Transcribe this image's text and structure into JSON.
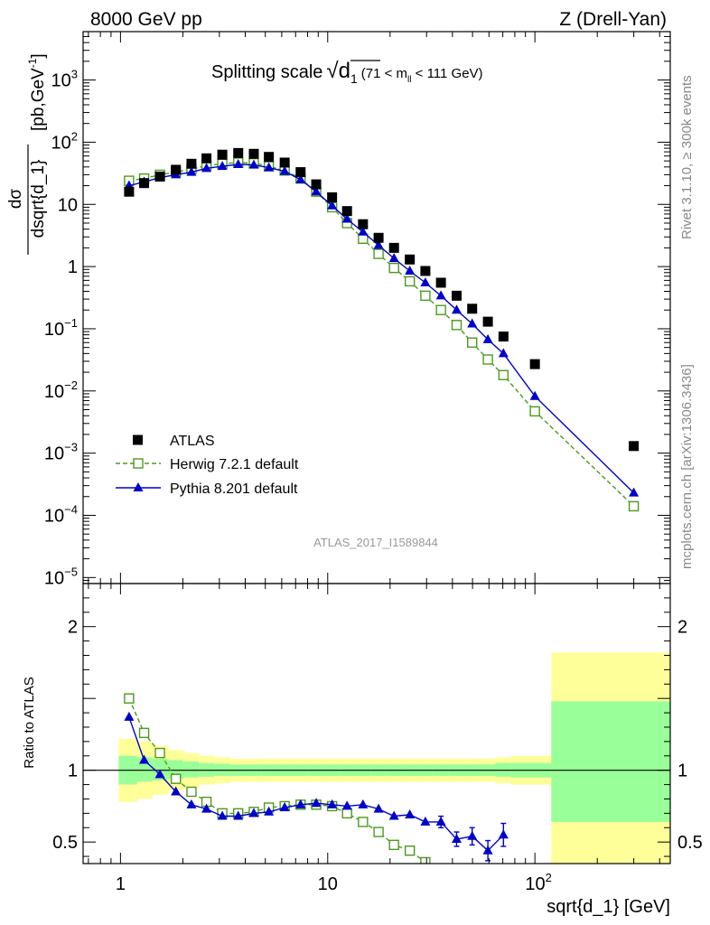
{
  "header": {
    "left": "8000 GeV pp",
    "right": "Z (Drell-Yan)"
  },
  "side_labels": {
    "rivet": "Rivet 3.1.10, ≥ 300k events",
    "mcplots": "mcplots.cern.ch [arXiv:1306.3436]"
  },
  "watermark": "ATLAS_2017_I1589844",
  "colors": {
    "atlas": "#000000",
    "herwig": "#4d9a1e",
    "pythia": "#0000cc",
    "band_inner": "#99ff99",
    "band_outer": "#ffff99"
  },
  "chart_data": [
    {
      "type": "scatter",
      "title": "Splitting scale",
      "title_math": "√d",
      "title_math_sub": "1",
      "title_cut_pre": "(71 < m",
      "title_cut_sub": "ll",
      "title_cut_post": " < 111 GeV)",
      "ylabel_num": "dσ",
      "ylabel_den": "dsqrt{d_1}",
      "ylabel_units": "[pb,GeV",
      "ylabel_units_sup": "-1",
      "ylabel_units_close": "]",
      "xscale": "log",
      "yscale": "log",
      "xlim": [
        0.66,
        450
      ],
      "ylim": [
        8e-06,
        6000
      ],
      "legend_position": "bottom-left",
      "y_ticks": [
        {
          "v": 1e-05,
          "base": "10",
          "exp": "−5"
        },
        {
          "v": 0.0001,
          "base": "10",
          "exp": "−4"
        },
        {
          "v": 0.001,
          "base": "10",
          "exp": "−3"
        },
        {
          "v": 0.01,
          "base": "10",
          "exp": "−2"
        },
        {
          "v": 0.1,
          "base": "10",
          "exp": "−1"
        },
        {
          "v": 1,
          "base": "1",
          "exp": ""
        },
        {
          "v": 10,
          "base": "10",
          "exp": ""
        },
        {
          "v": 100,
          "base": "10",
          "exp": "2"
        },
        {
          "v": 1000,
          "base": "10",
          "exp": "3"
        }
      ],
      "series": [
        {
          "name": "ATLAS",
          "style": "data",
          "x": [
            1.1,
            1.3,
            1.55,
            1.85,
            2.2,
            2.6,
            3.1,
            3.7,
            4.4,
            5.2,
            6.2,
            7.4,
            8.8,
            10.5,
            12.4,
            14.8,
            17.6,
            20.9,
            24.9,
            29.6,
            35.2,
            41.9,
            49.8,
            59.3,
            70.5,
            100,
            300
          ],
          "y": [
            16,
            22,
            28,
            36,
            45,
            55,
            63,
            67,
            65,
            58,
            47,
            33,
            21,
            13,
            7.8,
            4.8,
            2.9,
            2.0,
            1.3,
            0.85,
            0.55,
            0.34,
            0.21,
            0.13,
            0.075,
            0.027,
            0.0013
          ]
        },
        {
          "name": "Herwig 7.2.1 default",
          "style": "herwig",
          "x": [
            1.1,
            1.3,
            1.55,
            1.85,
            2.2,
            2.6,
            3.1,
            3.7,
            4.4,
            5.2,
            6.2,
            7.4,
            8.8,
            10.5,
            12.4,
            14.8,
            17.6,
            20.9,
            24.9,
            29.6,
            35.2,
            41.9,
            49.8,
            59.3,
            70.5,
            100,
            300
          ],
          "y": [
            24,
            26,
            30,
            33,
            37,
            42,
            45,
            47,
            46,
            41,
            35,
            26,
            16,
            9,
            5,
            2.8,
            1.6,
            0.95,
            0.58,
            0.34,
            0.2,
            0.115,
            0.06,
            0.032,
            0.018,
            0.0047,
            0.00014
          ]
        },
        {
          "name": "Pythia 8.201 default",
          "style": "pythia",
          "x": [
            1.1,
            1.3,
            1.55,
            1.85,
            2.2,
            2.6,
            3.1,
            3.7,
            4.4,
            5.2,
            6.2,
            7.4,
            8.8,
            10.5,
            12.4,
            14.8,
            17.6,
            20.9,
            24.9,
            29.6,
            35.2,
            41.9,
            49.8,
            59.3,
            70.5,
            100,
            300
          ],
          "y": [
            20,
            23,
            27,
            30,
            33,
            38,
            41,
            44,
            43,
            39,
            34,
            25,
            16,
            9.5,
            5.8,
            3.6,
            2.2,
            1.35,
            0.85,
            0.55,
            0.34,
            0.2,
            0.12,
            0.067,
            0.04,
            0.0082,
            0.00023
          ]
        }
      ]
    },
    {
      "type": "scatter",
      "title": "",
      "xlabel": "sqrt{d_1} [GeV]",
      "ylabel": "Ratio to ATLAS",
      "xscale": "log",
      "xlim": [
        0.66,
        450
      ],
      "ylim": [
        0.35,
        2.3
      ],
      "x_ticks": [
        {
          "v": 1,
          "base": "1",
          "exp": ""
        },
        {
          "v": 10,
          "base": "10",
          "exp": ""
        },
        {
          "v": 100,
          "base": "10",
          "exp": "2"
        }
      ],
      "y_ticks": [
        {
          "v": 0.5,
          "label": "0.5"
        },
        {
          "v": 1,
          "label": "1"
        },
        {
          "v": 2,
          "label": "2"
        }
      ],
      "uncertainty_bands": {
        "edges": [
          0.98,
          1.2,
          1.42,
          1.69,
          2.01,
          2.39,
          2.84,
          3.38,
          4.02,
          4.78,
          5.69,
          6.77,
          8.05,
          9.57,
          11.4,
          13.55,
          16.1,
          19.2,
          22.8,
          27.1,
          32.2,
          38.4,
          45.6,
          54.3,
          64.5,
          76.7,
          120,
          450
        ],
        "inner_low": [
          0.9,
          0.92,
          0.93,
          0.94,
          0.95,
          0.955,
          0.96,
          0.96,
          0.96,
          0.96,
          0.96,
          0.96,
          0.96,
          0.96,
          0.96,
          0.96,
          0.96,
          0.96,
          0.96,
          0.96,
          0.96,
          0.96,
          0.96,
          0.96,
          0.955,
          0.95,
          0.64
        ],
        "inner_high": [
          1.1,
          1.09,
          1.08,
          1.07,
          1.06,
          1.05,
          1.045,
          1.04,
          1.04,
          1.04,
          1.04,
          1.04,
          1.04,
          1.04,
          1.04,
          1.04,
          1.04,
          1.04,
          1.04,
          1.04,
          1.04,
          1.04,
          1.04,
          1.04,
          1.05,
          1.05,
          1.48
        ],
        "outer_low": [
          0.78,
          0.8,
          0.83,
          0.86,
          0.88,
          0.9,
          0.91,
          0.92,
          0.92,
          0.92,
          0.92,
          0.92,
          0.92,
          0.92,
          0.92,
          0.92,
          0.92,
          0.92,
          0.92,
          0.92,
          0.92,
          0.92,
          0.92,
          0.92,
          0.91,
          0.9,
          0.35
        ],
        "outer_high": [
          1.22,
          1.2,
          1.17,
          1.14,
          1.12,
          1.1,
          1.09,
          1.08,
          1.08,
          1.08,
          1.08,
          1.08,
          1.08,
          1.08,
          1.08,
          1.08,
          1.08,
          1.08,
          1.08,
          1.08,
          1.08,
          1.08,
          1.08,
          1.08,
          1.09,
          1.1,
          1.82
        ]
      },
      "series": [
        {
          "name": "Herwig 7.2.1 default",
          "style": "herwig",
          "x": [
            1.1,
            1.3,
            1.55,
            1.85,
            2.2,
            2.6,
            3.1,
            3.7,
            4.4,
            5.2,
            6.2,
            7.4,
            8.8,
            10.5,
            12.4,
            14.8,
            17.6,
            20.9,
            24.9,
            29.6
          ],
          "y": [
            1.5,
            1.26,
            1.12,
            0.94,
            0.85,
            0.78,
            0.7,
            0.7,
            0.71,
            0.74,
            0.75,
            0.76,
            0.76,
            0.75,
            0.7,
            0.64,
            0.57,
            0.48,
            0.44,
            0.36
          ]
        },
        {
          "name": "Pythia 8.201 default",
          "style": "pythia",
          "x": [
            1.1,
            1.3,
            1.55,
            1.85,
            2.2,
            2.6,
            3.1,
            3.7,
            4.4,
            5.2,
            6.2,
            7.4,
            8.8,
            10.5,
            12.4,
            14.8,
            17.6,
            20.9,
            24.9,
            29.6,
            35.2,
            41.9,
            49.8,
            59.3,
            70.5
          ],
          "y": [
            1.37,
            1.07,
            0.97,
            0.85,
            0.76,
            0.73,
            0.68,
            0.68,
            0.7,
            0.71,
            0.74,
            0.76,
            0.77,
            0.76,
            0.75,
            0.76,
            0.73,
            0.68,
            0.69,
            0.64,
            0.64,
            0.52,
            0.54,
            0.44,
            0.55
          ],
          "yerr": [
            0.02,
            0.02,
            0.02,
            0.02,
            0.01,
            0.01,
            0.01,
            0.01,
            0.01,
            0.01,
            0.01,
            0.01,
            0.01,
            0.01,
            0.01,
            0.02,
            0.02,
            0.02,
            0.02,
            0.03,
            0.04,
            0.05,
            0.06,
            0.07,
            0.08
          ]
        }
      ]
    }
  ]
}
